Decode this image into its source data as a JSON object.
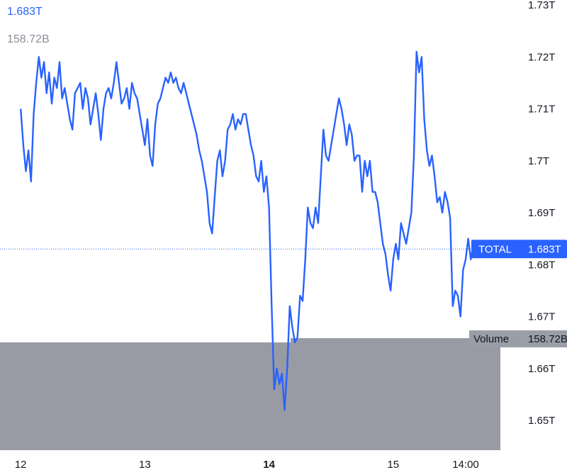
{
  "legend": {
    "price_value": "1.683T",
    "volume_value": "158.72B"
  },
  "colors": {
    "line": "#2962ff",
    "volume": "#989ba3",
    "crosshair": "#2962ff",
    "volume_tag_bg": "#9a9ea6"
  },
  "price_tag": {
    "label": "TOTAL",
    "value": "1.683T"
  },
  "volume_tag": {
    "label": "Volume",
    "value": "158.72B"
  },
  "chart_data": {
    "type": "line",
    "title": "",
    "series": [
      {
        "values": [
          1.71,
          1.703,
          1.698,
          1.702,
          1.696,
          1.709,
          1.715,
          1.72,
          1.716,
          1.719,
          1.713,
          1.717,
          1.711,
          1.716,
          1.714,
          1.719,
          1.712,
          1.714,
          1.711,
          1.708,
          1.706,
          1.713,
          1.714,
          1.715,
          1.71,
          1.714,
          1.712,
          1.707,
          1.71,
          1.713,
          1.709,
          1.704,
          1.71,
          1.713,
          1.714,
          1.712,
          1.715,
          1.719,
          1.715,
          1.711,
          1.712,
          1.714,
          1.71,
          1.715,
          1.713,
          1.712,
          1.709,
          1.706,
          1.703,
          1.708,
          1.701,
          1.699,
          1.707,
          1.711,
          1.712,
          1.714,
          1.716,
          1.715,
          1.717,
          1.715,
          1.716,
          1.714,
          1.713,
          1.715,
          1.713,
          1.711,
          1.709,
          1.707,
          1.705,
          1.702,
          1.7,
          1.697,
          1.694,
          1.688,
          1.686,
          1.693,
          1.7,
          1.702,
          1.697,
          1.7,
          1.706,
          1.707,
          1.709,
          1.706,
          1.708,
          1.707,
          1.709,
          1.709,
          1.706,
          1.703,
          1.701,
          1.697,
          1.696,
          1.7,
          1.694,
          1.697,
          1.691,
          1.672,
          1.656,
          1.66,
          1.657,
          1.659,
          1.652,
          1.66,
          1.672,
          1.668,
          1.665,
          1.666,
          1.674,
          1.673,
          1.681,
          1.691,
          1.688,
          1.687,
          1.691,
          1.688,
          1.697,
          1.706,
          1.701,
          1.7,
          1.703,
          1.706,
          1.709,
          1.712,
          1.71,
          1.707,
          1.703,
          1.707,
          1.705,
          1.7,
          1.701,
          1.701,
          1.694,
          1.7,
          1.697,
          1.7,
          1.694,
          1.694,
          1.692,
          1.688,
          1.684,
          1.682,
          1.678,
          1.675,
          1.681,
          1.684,
          1.681,
          1.688,
          1.686,
          1.684,
          1.687,
          1.69,
          1.701,
          1.721,
          1.717,
          1.72,
          1.708,
          1.702,
          1.699,
          1.701,
          1.697,
          1.692,
          1.693,
          1.69,
          1.694,
          1.692,
          1.689,
          1.672,
          1.675,
          1.674,
          1.67,
          1.679,
          1.681,
          1.685,
          1.681,
          1.684,
          1.683
        ],
        "x_start": "2021-12-12T00:00",
        "x_end": "2021-12-15T16:00"
      }
    ],
    "x_ticks": [
      {
        "label": "12",
        "x": "2021-12-12T00:00",
        "bold": false
      },
      {
        "label": "13",
        "x": "2021-12-13T00:00",
        "bold": false
      },
      {
        "label": "14",
        "x": "2021-12-14T00:00",
        "bold": true
      },
      {
        "label": "15",
        "x": "2021-12-15T00:00",
        "bold": false
      },
      {
        "label": "14:00",
        "x": "2021-12-15T14:00",
        "bold": false
      }
    ],
    "y_ticks": [
      {
        "label": "1.73T",
        "value": 1.73
      },
      {
        "label": "1.72T",
        "value": 1.72
      },
      {
        "label": "1.71T",
        "value": 1.71
      },
      {
        "label": "1.7T",
        "value": 1.7
      },
      {
        "label": "1.69T",
        "value": 1.69
      },
      {
        "label": "1.68T",
        "value": 1.68
      },
      {
        "label": "1.67T",
        "value": 1.67
      },
      {
        "label": "1.66T",
        "value": 1.66
      },
      {
        "label": "1.65T",
        "value": 1.65
      }
    ],
    "ylim": [
      1.643,
      1.731
    ],
    "current_value": 1.683,
    "volume_value": 158.72,
    "grid": false,
    "y_axis_side": "right"
  }
}
